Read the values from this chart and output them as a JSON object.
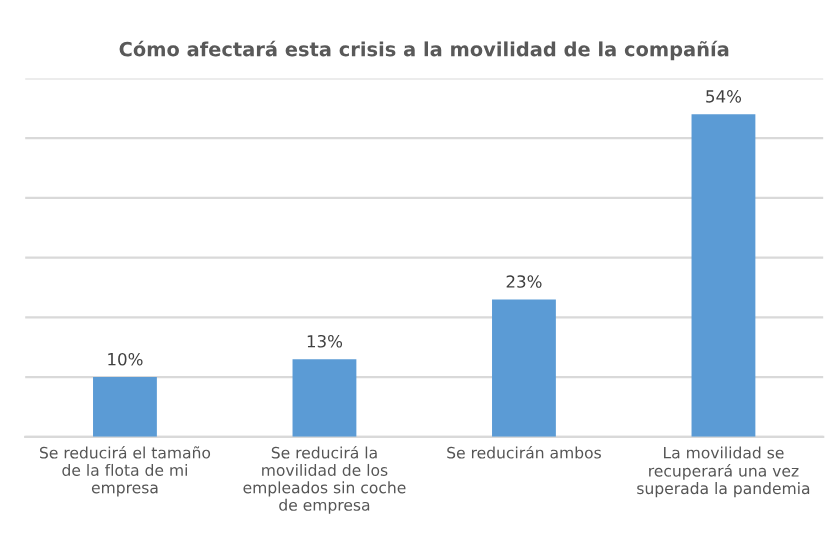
{
  "chart_data": {
    "type": "bar",
    "title": "Cómo afectará esta crisis a la movilidad de la compañía",
    "categories": [
      "Se reducirá el tamaño de la flota de mi empresa",
      "Se reducirá la movilidad de los empleados sin coche de empresa",
      "Se reducirán ambos",
      "La movilidad se recuperará una vez superada la pandemia"
    ],
    "values": [
      10,
      13,
      23,
      54
    ],
    "value_labels": [
      "10%",
      "13%",
      "23%",
      "54%"
    ],
    "color": "#5b9bd5",
    "ylim": [
      0,
      60
    ],
    "yticks": [
      {
        "value": 0,
        "label": null
      },
      {
        "value": 10,
        "label": null
      },
      {
        "value": 20,
        "label": null
      },
      {
        "value": 30,
        "label": null
      },
      {
        "value": 40,
        "label": null
      },
      {
        "value": 50,
        "label": null
      },
      {
        "value": 60,
        "label": null
      }
    ],
    "tick_labels": "x",
    "grid": "y"
  }
}
